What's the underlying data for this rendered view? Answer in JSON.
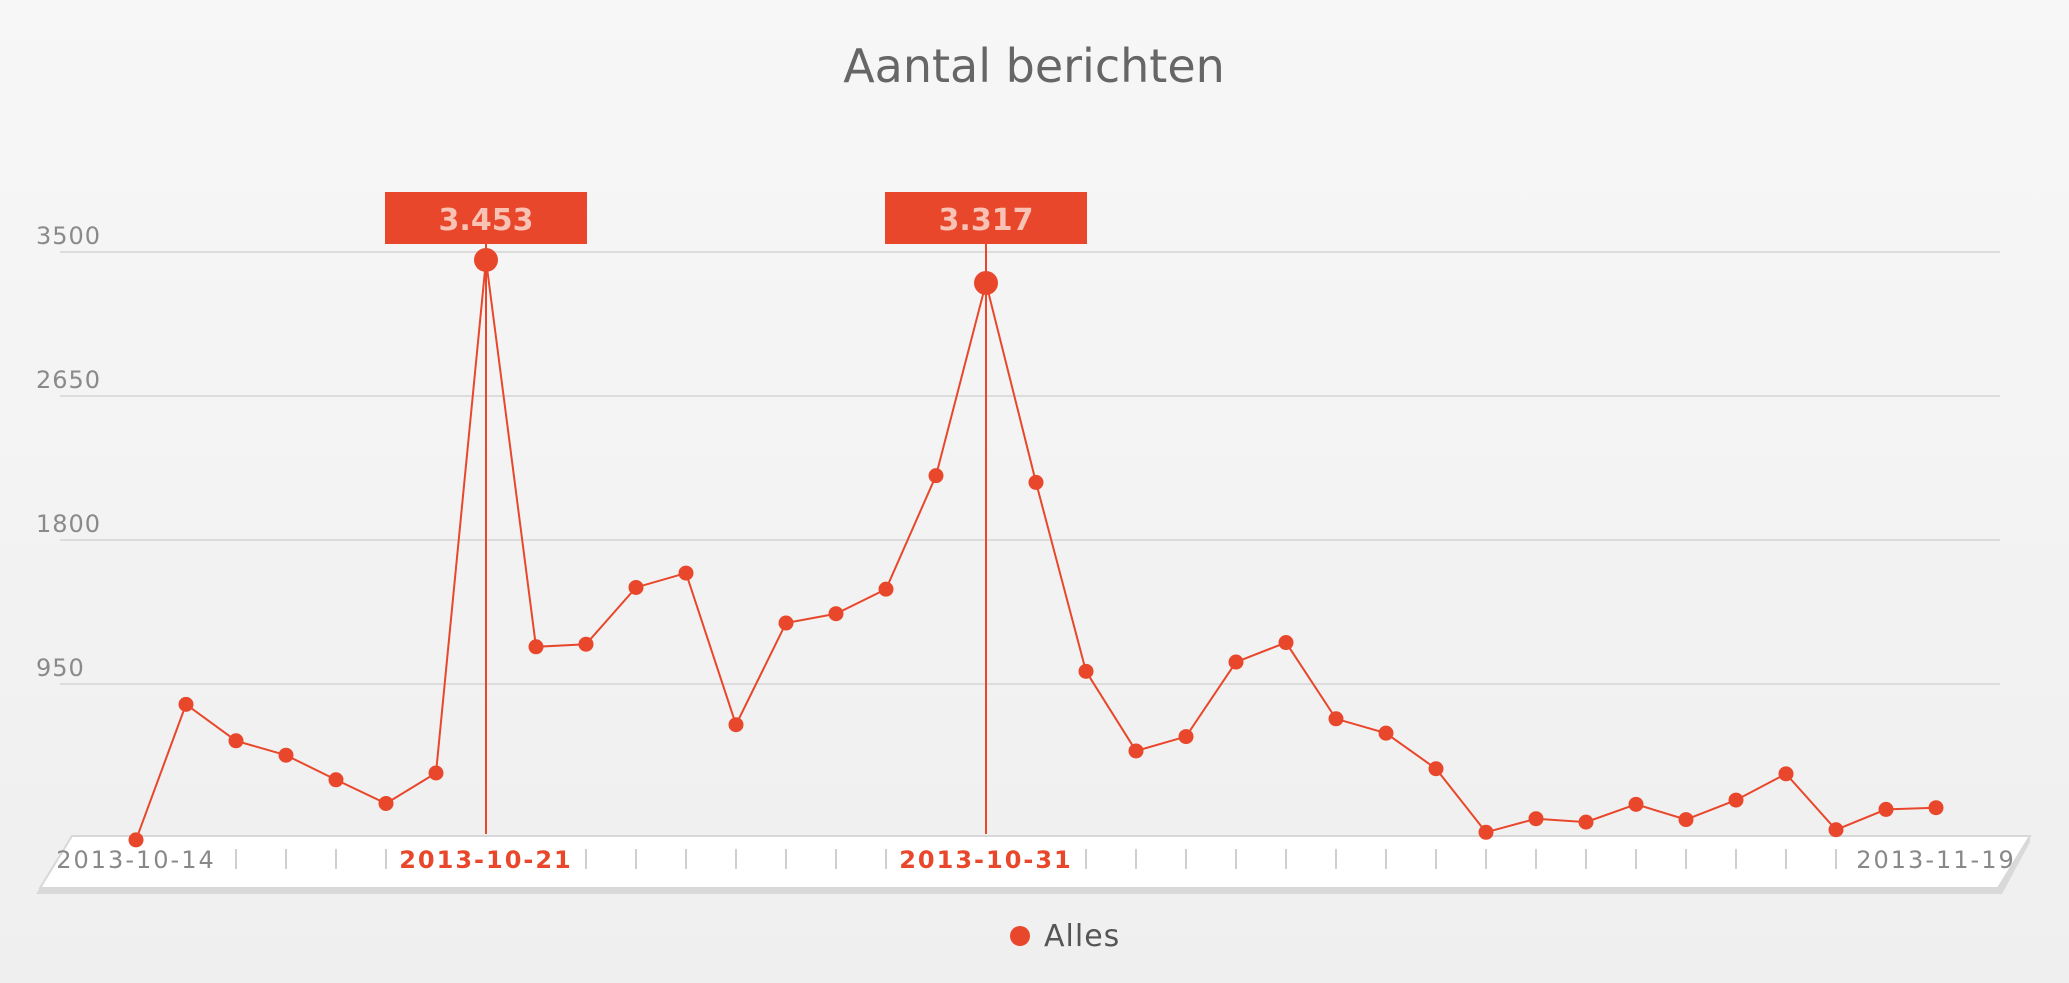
{
  "colors": {
    "accent": "#e8472b",
    "text": "#666666",
    "grid": "#dcdcdc"
  },
  "chart_data": {
    "type": "line",
    "title": "Aantal berichten",
    "ylim": [
      0,
      3500
    ],
    "yticks": [
      "950",
      "1800",
      "2650",
      "3500"
    ],
    "ytick_values": [
      950,
      1800,
      2650,
      3500
    ],
    "x_labels": [
      {
        "index": 0,
        "text": "2013-10-14",
        "highlight": false
      },
      {
        "index": 7,
        "text": "2013-10-21",
        "highlight": true
      },
      {
        "index": 17,
        "text": "2013-10-31",
        "highlight": true
      },
      {
        "index": 36,
        "text": "2013-11-19",
        "highlight": false
      }
    ],
    "series": [
      {
        "name": "Alles",
        "color": "#e8472b",
        "values": [
          30,
          830,
          615,
          530,
          385,
          245,
          425,
          3453,
          1170,
          1185,
          1520,
          1605,
          710,
          1310,
          1365,
          1510,
          2180,
          3317,
          2140,
          1025,
          555,
          640,
          1080,
          1195,
          745,
          660,
          450,
          75,
          155,
          135,
          240,
          150,
          265,
          420,
          90,
          210,
          220
        ]
      }
    ],
    "highlights": [
      {
        "index": 7,
        "label": "3.453"
      },
      {
        "index": 17,
        "label": "3.317"
      }
    ],
    "grid": true,
    "legend_position": "bottom-center"
  }
}
